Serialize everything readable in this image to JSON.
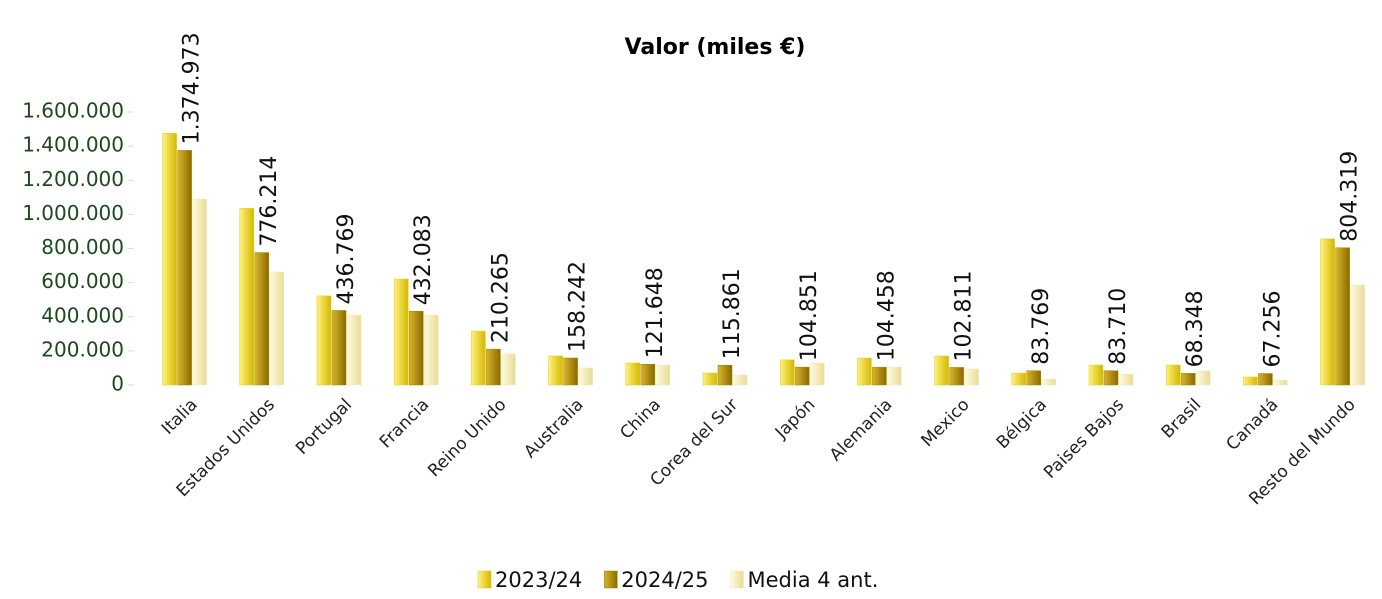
{
  "chart_data": {
    "type": "bar",
    "title": "Valor (miles €)",
    "categories": [
      "Italia",
      "Estados Unidos",
      "Portugal",
      "Francia",
      "Reino Unido",
      "Australia",
      "China",
      "Corea del Sur",
      "Japón",
      "Alemania",
      "Mexico",
      "Bélgica",
      "Paises Bajos",
      "Brasil",
      "Canadá",
      "Resto del Mundo"
    ],
    "series": [
      {
        "name": "2023/24",
        "color": "#e6cc10",
        "values": [
          1475000,
          1035000,
          522000,
          621000,
          316000,
          170000,
          129000,
          70000,
          147000,
          158000,
          170000,
          70000,
          117000,
          117000,
          47000,
          856000
        ]
      },
      {
        "name": "2024/25",
        "color": "#a88300",
        "values": [
          1374973,
          776214,
          436769,
          432083,
          210265,
          158242,
          121648,
          115861,
          104851,
          104458,
          102811,
          83769,
          83710,
          68348,
          67256,
          804319
        ],
        "value_labels": [
          "1.374.973",
          "776.214",
          "436.769",
          "432.083",
          "210.265",
          "158.242",
          "121.648",
          "115.861",
          "104.851",
          "104.458",
          "102.811",
          "83.769",
          "83.710",
          "68.348",
          "67.256",
          "804.319"
        ]
      },
      {
        "name": "Media 4 ant.",
        "color": "#f2eab4",
        "values": [
          1090000,
          662000,
          410000,
          410000,
          182000,
          100000,
          117000,
          59000,
          129000,
          105000,
          94000,
          35000,
          64000,
          82000,
          29000,
          586000
        ]
      }
    ],
    "ylim": [
      0,
      1600000
    ],
    "yticks": [
      0,
      {
        "value": 200000,
        "label": "200.000"
      },
      {
        "value": 400000,
        "label": "400.000"
      },
      {
        "value": 600000,
        "label": "600.000"
      },
      {
        "value": 800000,
        "label": "800.000"
      },
      {
        "value": 1000000,
        "label": "1.000.000"
      },
      {
        "value": 1200000,
        "label": "1.200.000"
      },
      {
        "value": 1400000,
        "label": "1.400.000"
      },
      {
        "value": 1600000,
        "label": "1.600.000"
      }
    ],
    "legend": "bottom"
  }
}
